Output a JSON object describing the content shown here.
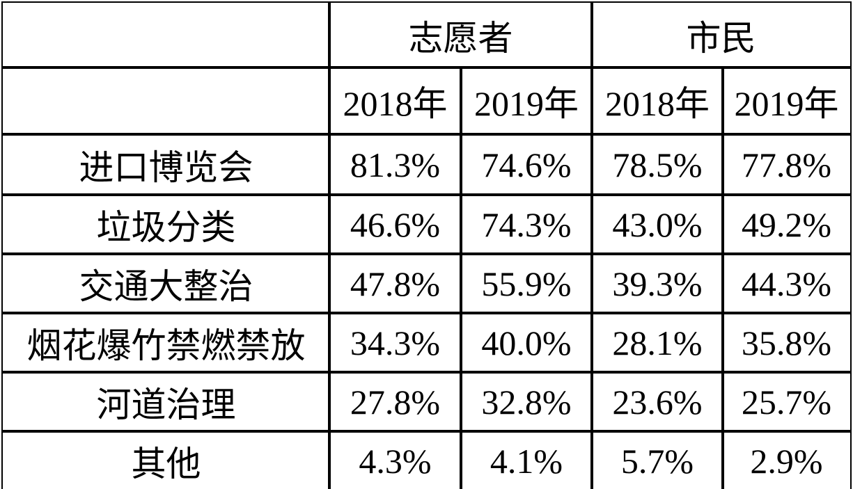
{
  "table": {
    "groups": [
      "志愿者",
      "市民"
    ],
    "years": [
      "2018年",
      "2019年",
      "2018年",
      "2019年"
    ],
    "rows": [
      {
        "label": "进口博览会",
        "values": [
          "81.3%",
          "74.6%",
          "78.5%",
          "77.8%"
        ]
      },
      {
        "label": "垃圾分类",
        "values": [
          "46.6%",
          "74.3%",
          "43.0%",
          "49.2%"
        ]
      },
      {
        "label": "交通大整治",
        "values": [
          "47.8%",
          "55.9%",
          "39.3%",
          "44.3%"
        ]
      },
      {
        "label": "烟花爆竹禁燃禁放",
        "values": [
          "34.3%",
          "40.0%",
          "28.1%",
          "35.8%"
        ]
      },
      {
        "label": "河道治理",
        "values": [
          "27.8%",
          "32.8%",
          "23.6%",
          "25.7%"
        ]
      },
      {
        "label": "其他",
        "values": [
          "4.3%",
          "4.1%",
          "5.7%",
          "2.9%"
        ]
      }
    ]
  }
}
